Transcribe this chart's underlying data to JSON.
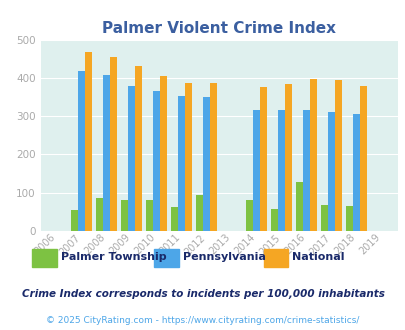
{
  "title": "Palmer Violent Crime Index",
  "years": [
    2006,
    2007,
    2008,
    2009,
    2010,
    2011,
    2012,
    2013,
    2014,
    2015,
    2016,
    2017,
    2018,
    2019
  ],
  "palmer": [
    0,
    55,
    87,
    82,
    80,
    62,
    95,
    0,
    80,
    57,
    128,
    67,
    65,
    0
  ],
  "pennsylvania": [
    0,
    418,
    408,
    380,
    365,
    353,
    349,
    0,
    315,
    315,
    315,
    312,
    306,
    0
  ],
  "national": [
    0,
    467,
    455,
    432,
    405,
    387,
    387,
    0,
    376,
    383,
    397,
    394,
    380,
    0
  ],
  "palmer_color": "#7dc242",
  "pennsylvania_color": "#4da6e8",
  "national_color": "#f5a623",
  "bg_color": "#dff0ee",
  "ylim": [
    0,
    500
  ],
  "yticks": [
    0,
    100,
    200,
    300,
    400,
    500
  ],
  "bar_width": 0.28,
  "legend_labels": [
    "Palmer Township",
    "Pennsylvania",
    "National"
  ],
  "footnote1": "Crime Index corresponds to incidents per 100,000 inhabitants",
  "footnote2": "© 2025 CityRating.com - https://www.cityrating.com/crime-statistics/",
  "title_color": "#3b5fa0",
  "footnote1_color": "#1a2a6a",
  "footnote2_color": "#4da6e8",
  "legend_text_color": "#1a2a6a",
  "tick_color": "#aaaaaa",
  "grid_color": "#ffffff"
}
